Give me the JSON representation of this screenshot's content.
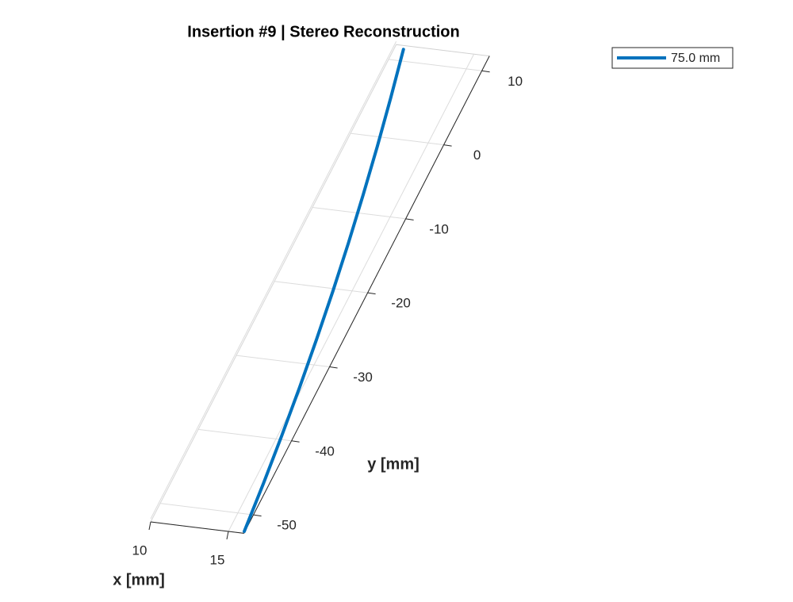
{
  "chart_data": {
    "type": "line3d",
    "title": "Insertion #9 | Stereo Reconstruction",
    "xlabel": "x [mm]",
    "ylabel": "y [mm]",
    "xlim": [
      10,
      16
    ],
    "ylim": [
      -52.5,
      12
    ],
    "xticks": [
      10,
      15
    ],
    "yticks": [
      -50,
      -40,
      -30,
      -20,
      -10,
      0,
      10
    ],
    "grid": true,
    "legend": "upper-right",
    "series": [
      {
        "name": "75.0 mm",
        "color": "#0072bd",
        "x": [
          15.96,
          15.63,
          15.25,
          14.83,
          14.36,
          13.85,
          13.29,
          12.68,
          12.03,
          11.33,
          10.59
        ],
        "y": [
          -52.25,
          -45.88,
          -39.5,
          -33.13,
          -26.75,
          -20.38,
          -14.0,
          -7.63,
          -1.25,
          5.13,
          11.5
        ]
      }
    ]
  }
}
